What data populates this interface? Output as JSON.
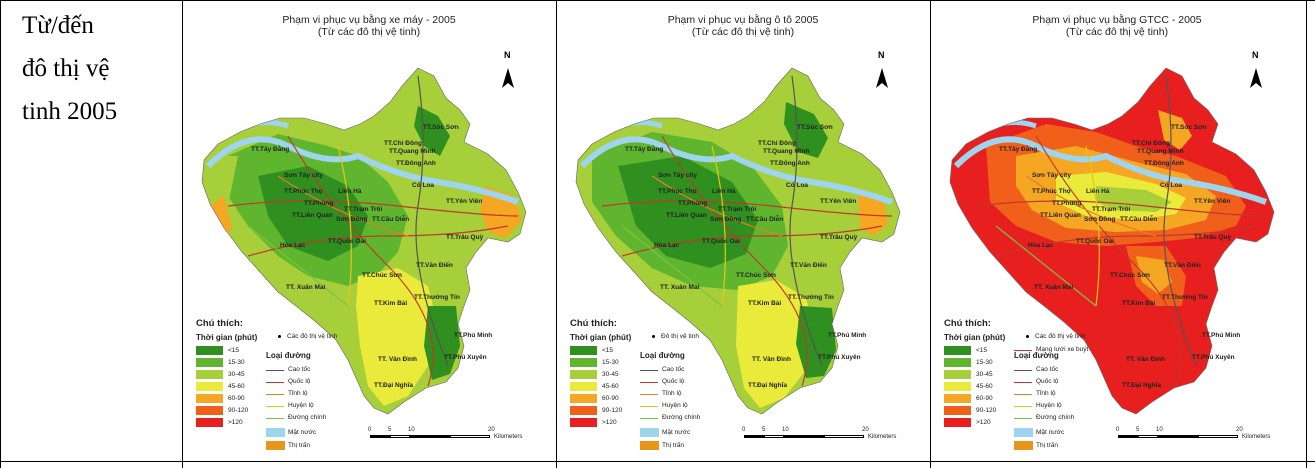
{
  "row_label": {
    "line1": "Từ/đến",
    "line2": "đô thị vệ",
    "line3": "tinh 2005"
  },
  "panels": [
    {
      "title": "Phạm vi phục vụ bằng xe máy - 2005",
      "subtitle": "(Từ các đô thị vệ tinh)",
      "legend_title": "Chú thích:",
      "time_label": "Thời gian (phút)",
      "satellite_label": "Các đô thị vệ tinh",
      "bus_label": ""
    },
    {
      "title": "Phạm vi phục vụ bằng ô tô 2005",
      "subtitle": "(Từ các đô thị vệ tinh)",
      "legend_title": "Chú thích:",
      "time_label": "Thời gian (phút)",
      "satellite_label": "Đô thị vệ tinh",
      "bus_label": ""
    },
    {
      "title": "Phạm vi phục vụ bằng GTCC - 2005",
      "subtitle": "(Từ các đô thị vệ tinh)",
      "legend_title": "Chú thích:",
      "time_label": "Thời gian (phút)",
      "satellite_label": "Các đô thị vệ tinh",
      "bus_label": "Mạng lưới xe buýt"
    }
  ],
  "legend": {
    "time_classes": [
      "<15",
      "15-30",
      "30-45",
      "45-60",
      "60-90",
      "90-120",
      ">120"
    ],
    "time_colors": [
      "#2f8f1f",
      "#5fb52e",
      "#a6cf3a",
      "#eaea3a",
      "#f5a623",
      "#f0601a",
      "#e81f1f"
    ],
    "road_title": "Loại đường",
    "roads": [
      {
        "label": "Cao tốc",
        "color": "#555555"
      },
      {
        "label": "Quốc lộ",
        "color": "#c0392b"
      },
      {
        "label": "Tỉnh lộ",
        "color": "#e67e22"
      },
      {
        "label": "Huyện lộ",
        "color": "#e6c619"
      },
      {
        "label": "Đường chính",
        "color": "#7cc242"
      }
    ],
    "water_label": "Mặt nước",
    "water_color": "#9fd4ef",
    "town_label": "Thị trấn",
    "town_color": "#e8951c"
  },
  "scale": {
    "ticks": [
      "0",
      "5",
      "10",
      "20"
    ],
    "unit": "Kilometers"
  },
  "north": "N",
  "places": [
    "TT.Sóc Sơn",
    "TT.Chi Đông",
    "TT.Quang Minh",
    "TT.Đông Anh",
    "TT.Tây Đằng",
    "Sơn Tây city",
    "Cổ Loa",
    "TT.Phúc Thọ",
    "Liên Hà",
    "TT.Yên Viên",
    "TT.Phùng",
    "TT.Trạm Trôi",
    "TT.Liên Quan",
    "Sơn Đồng",
    "TT.Cầu Diễn",
    "TT.Trâu Quỳ",
    "Hòa Lạc",
    "TT.Quốc Oai",
    "TT.Văn Điển",
    "TT.Chúc Sơn",
    "TT. Xuân Mai",
    "TT.Thường Tín",
    "TT.Kim Bài",
    "TT.Phú Minh",
    "TT. Vân Đình",
    "TT.Phú Xuyên",
    "TT.Đại Nghĩa"
  ]
}
